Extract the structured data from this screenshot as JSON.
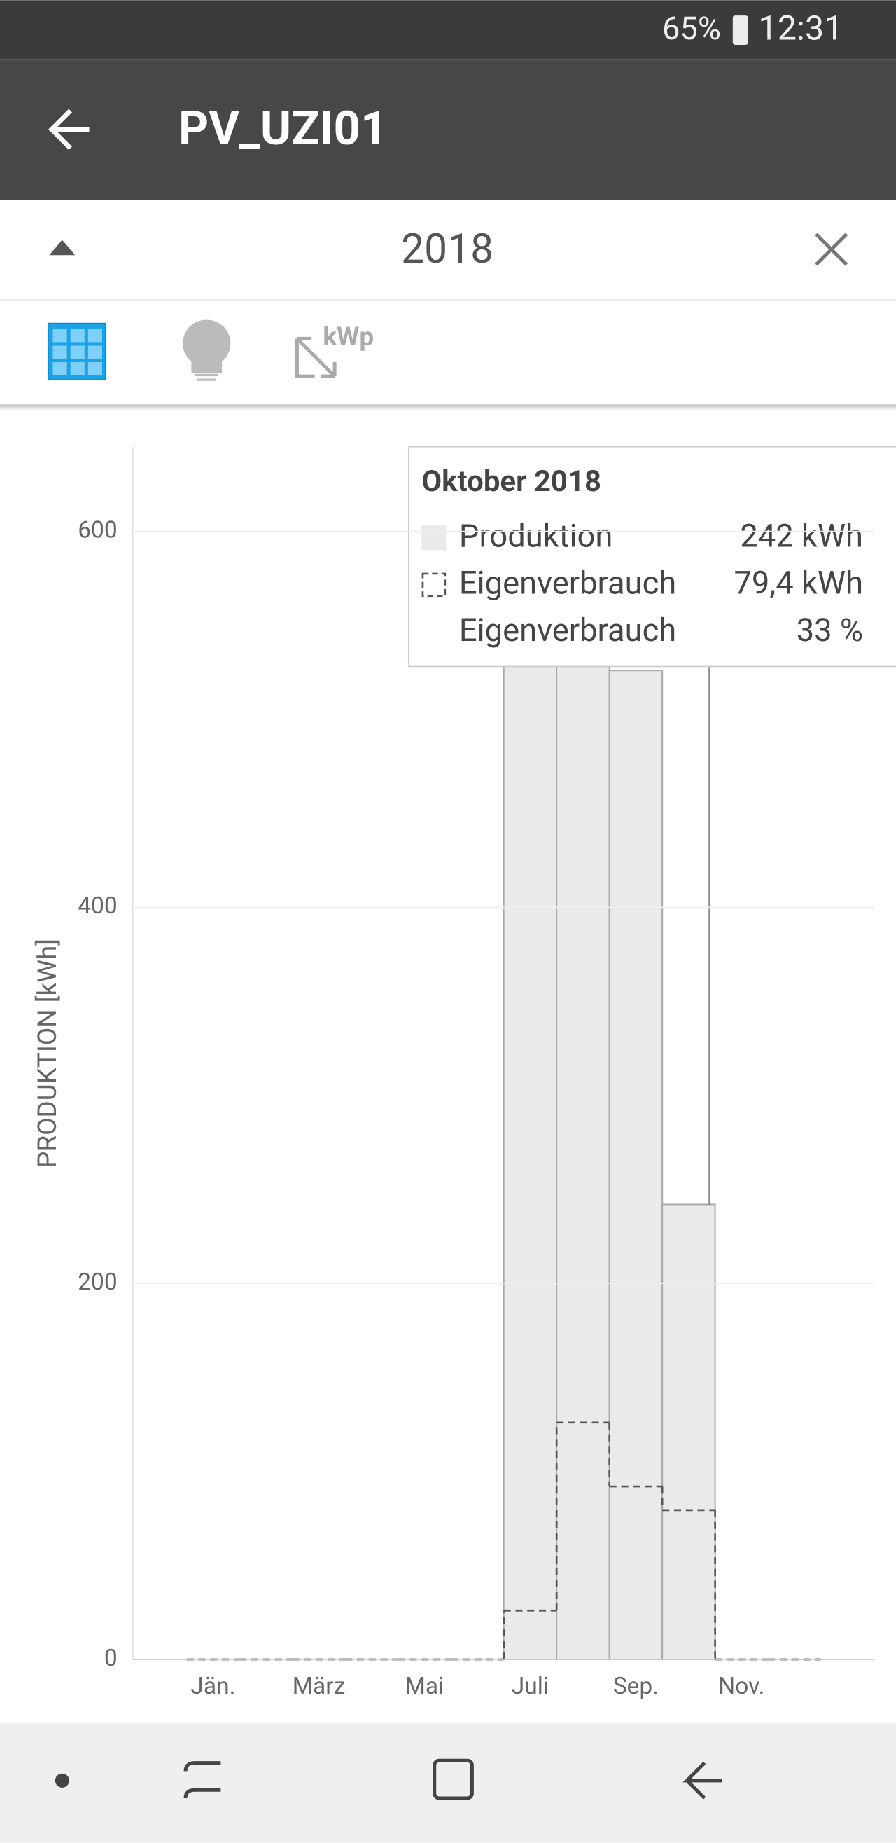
{
  "status_bar": {
    "battery": "65%",
    "time": "12:31"
  },
  "app_bar": {
    "title": "PV_UZI01"
  },
  "period": {
    "year": "2018"
  },
  "toolbar": {
    "kwp": "kWp"
  },
  "chart_data": {
    "type": "bar",
    "y_label": "PRODUKTION [kWh]",
    "categories": [
      "Jän.",
      null,
      "März",
      null,
      "Mai",
      null,
      "Juli",
      null,
      "Sep.",
      null,
      "Nov.",
      null
    ],
    "series": [
      {
        "name": "Produktion",
        "color": "#e9ebea",
        "values": [
          0,
          0,
          0,
          0,
          0,
          0,
          531,
          650,
          526,
          242,
          0,
          0
        ]
      },
      {
        "name": "Eigenverbrauch",
        "color": "#555555",
        "values": [
          0,
          0,
          0,
          0,
          0,
          0,
          26,
          126,
          92,
          79.4,
          0,
          0
        ]
      }
    ],
    "ylim": [
      0,
      645
    ],
    "yticks": [
      0,
      200,
      400,
      600
    ],
    "grid": true,
    "tooltip": {
      "title": "Oktober 2018",
      "values": [
        "242 kWh",
        "79,4 kWh"
      ],
      "share_label": "Eigenverbrauch",
      "share": "33 %"
    }
  }
}
